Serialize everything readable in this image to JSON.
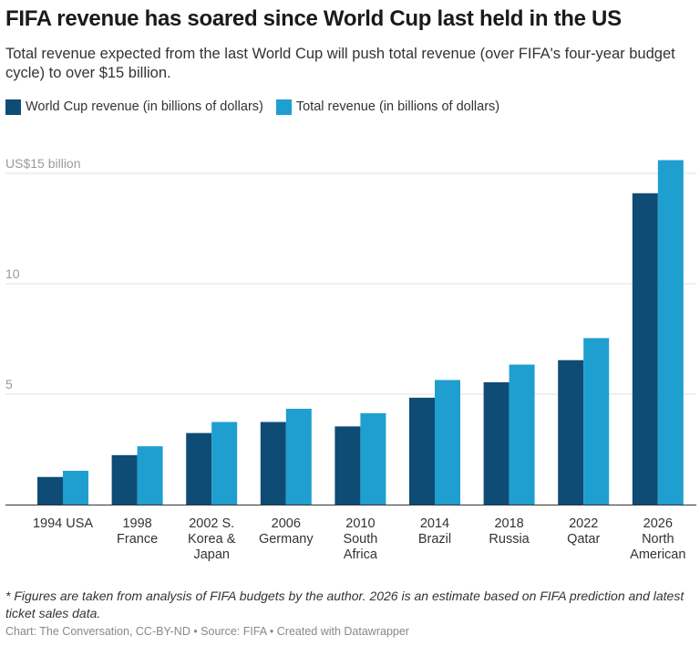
{
  "title": "FIFA revenue has soared since World Cup last held in the US",
  "subtitle": "Total revenue expected from the last World Cup will push total revenue (over FIFA's four-year budget cycle) to over $15 billion.",
  "legend": [
    {
      "label": "World Cup revenue (in billions of dollars)",
      "color": "#0f4c75"
    },
    {
      "label": "Total revenue (in billions of dollars)",
      "color": "#1f9fd0"
    }
  ],
  "footnote": "* Figures are taken from analysis of FIFA budgets by the author. 2026 is an estimate based on FIFA prediction and latest ticket sales data.",
  "credit": "Chart: The Conversation, CC-BY-ND • Source: FIFA • Created with Datawrapper",
  "chart_data": {
    "type": "bar",
    "categories": [
      [
        "1994 USA"
      ],
      [
        "1998",
        "France"
      ],
      [
        "2002 S.",
        "Korea &",
        "Japan"
      ],
      [
        "2006",
        "Germany"
      ],
      [
        "2010",
        "South",
        "Africa"
      ],
      [
        "2014",
        "Brazil"
      ],
      [
        "2018",
        "Russia"
      ],
      [
        "2022",
        "Qatar"
      ],
      [
        "2026",
        "North",
        "American"
      ]
    ],
    "series": [
      {
        "name": "World Cup revenue (in billions of dollars)",
        "color": "#0f4c75",
        "values": [
          1.25,
          2.24,
          3.24,
          3.74,
          3.54,
          4.84,
          5.54,
          6.54,
          14.1
        ]
      },
      {
        "name": "Total revenue (in billions of dollars)",
        "color": "#1f9fd0",
        "values": [
          1.53,
          2.64,
          3.74,
          4.34,
          4.14,
          5.64,
          6.34,
          7.54,
          15.6
        ]
      }
    ],
    "yticks": [
      {
        "value": 15,
        "label": "US$15 billion"
      },
      {
        "value": 10,
        "label": "10"
      },
      {
        "value": 5,
        "label": "5"
      }
    ],
    "ylim": [
      0,
      15.6
    ],
    "grid": true
  }
}
